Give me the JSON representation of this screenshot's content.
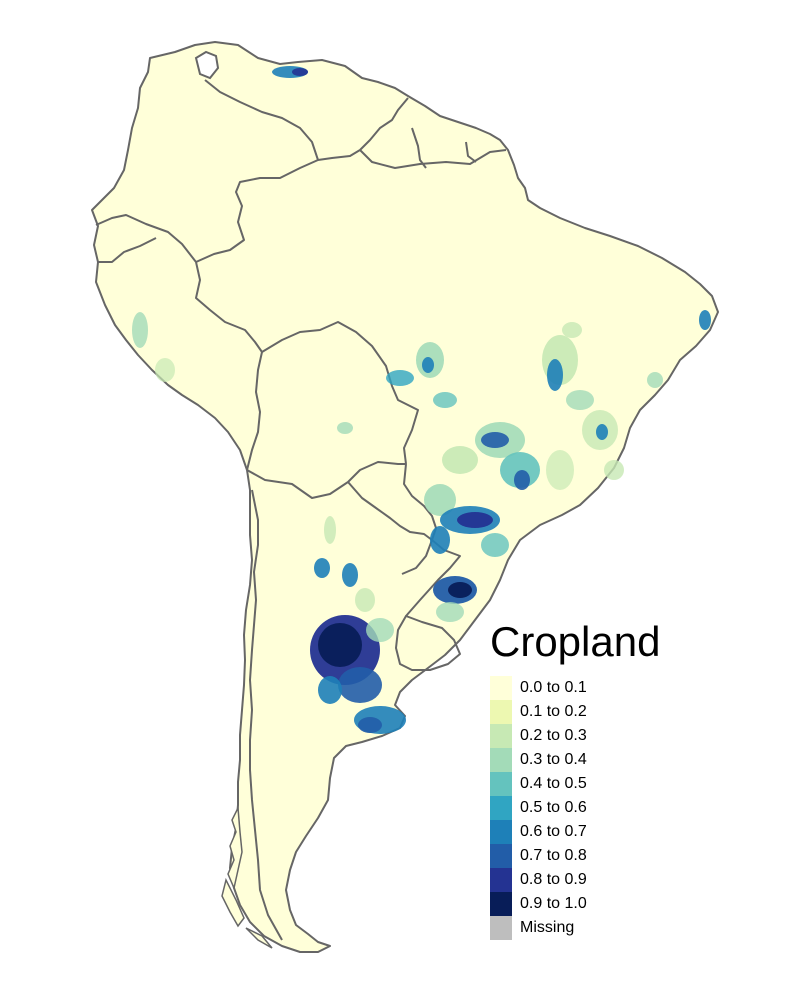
{
  "legend": {
    "title": "Cropland",
    "items": [
      {
        "label": "0.0 to 0.1",
        "color": "#ffffd9"
      },
      {
        "label": "0.1 to 0.2",
        "color": "#edf8b1"
      },
      {
        "label": "0.2 to 0.3",
        "color": "#c7e9b4"
      },
      {
        "label": "0.3 to 0.4",
        "color": "#a3dbb8"
      },
      {
        "label": "0.4 to 0.5",
        "color": "#64c3be"
      },
      {
        "label": "0.5 to 0.6",
        "color": "#30a5c2"
      },
      {
        "label": "0.6 to 0.7",
        "color": "#1e80b8"
      },
      {
        "label": "0.7 to 0.8",
        "color": "#225da8"
      },
      {
        "label": "0.8 to 0.9",
        "color": "#243392"
      },
      {
        "label": "0.9 to 1.0",
        "color": "#081d58"
      },
      {
        "label": "Missing",
        "color": "#bebebe"
      }
    ]
  },
  "map": {
    "region": "South America",
    "border_color": "#666666",
    "land_color": "#ffffd9"
  }
}
